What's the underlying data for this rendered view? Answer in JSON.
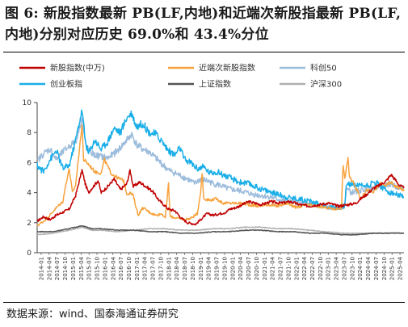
{
  "header": {
    "title": "图 6:  新股指数最新 PB(LF,内地)和近端次新股指最新 PB(LF,内地)分别对应历史 69.0%和 43.4%分位"
  },
  "footer": {
    "source": "数据来源：wind、国泰海通证券研究"
  },
  "chart_data": {
    "type": "line",
    "title": "",
    "xlabel": "",
    "ylabel": "",
    "ylim": [
      0,
      10
    ],
    "yticks": [
      0,
      2,
      4,
      6,
      8,
      10
    ],
    "legend_position": "top",
    "x_tick_labels": [
      "2014-01",
      "2014-04",
      "2014-07",
      "2014-10",
      "2015-01",
      "2015-04",
      "2015-07",
      "2015-10",
      "2016-01",
      "2016-04",
      "2016-07",
      "2016-10",
      "2017-01",
      "2017-04",
      "2017-07",
      "2017-10",
      "2018-01",
      "2018-04",
      "2018-07",
      "2018-10",
      "2019-01",
      "2019-04",
      "2019-07",
      "2019-10",
      "2020-01",
      "2020-04",
      "2020-07",
      "2020-10",
      "2021-01",
      "2021-04",
      "2021-07",
      "2021-10",
      "2022-01",
      "2022-04",
      "2022-07",
      "2022-10",
      "2023-01",
      "2023-04",
      "2023-07",
      "2023-10",
      "2024-01",
      "2024-04",
      "2024-07",
      "2024-10",
      "2025-01",
      "2025-04"
    ],
    "x_start": 2014.0,
    "x_end": 2025.45,
    "series": [
      {
        "name": "新股指数(中万)",
        "color": "#c00000",
        "points": [
          [
            2014.0,
            2.1
          ],
          [
            2014.2,
            2.4
          ],
          [
            2014.4,
            2.2
          ],
          [
            2014.6,
            2.5
          ],
          [
            2014.8,
            2.7
          ],
          [
            2015.0,
            2.9
          ],
          [
            2015.2,
            3.8
          ],
          [
            2015.4,
            5.5
          ],
          [
            2015.5,
            4.6
          ],
          [
            2015.6,
            4.0
          ],
          [
            2015.75,
            4.4
          ],
          [
            2015.9,
            4.8
          ],
          [
            2016.0,
            4.0
          ],
          [
            2016.2,
            4.4
          ],
          [
            2016.4,
            4.9
          ],
          [
            2016.6,
            4.2
          ],
          [
            2016.8,
            4.6
          ],
          [
            2016.9,
            5.5
          ],
          [
            2017.0,
            4.4
          ],
          [
            2017.2,
            4.7
          ],
          [
            2017.4,
            4.4
          ],
          [
            2017.6,
            4.1
          ],
          [
            2017.8,
            3.5
          ],
          [
            2017.95,
            3.2
          ],
          [
            2018.1,
            2.9
          ],
          [
            2018.3,
            2.8
          ],
          [
            2018.5,
            2.3
          ],
          [
            2018.7,
            2.0
          ],
          [
            2018.95,
            1.9
          ],
          [
            2019.1,
            2.2
          ],
          [
            2019.3,
            2.6
          ],
          [
            2019.5,
            2.5
          ],
          [
            2019.7,
            2.6
          ],
          [
            2019.9,
            2.7
          ],
          [
            2020.0,
            2.9
          ],
          [
            2020.2,
            3.0
          ],
          [
            2020.4,
            3.2
          ],
          [
            2020.6,
            3.4
          ],
          [
            2020.8,
            3.3
          ],
          [
            2021.0,
            3.2
          ],
          [
            2021.3,
            3.4
          ],
          [
            2021.6,
            3.3
          ],
          [
            2021.9,
            3.4
          ],
          [
            2022.2,
            3.2
          ],
          [
            2022.5,
            3.1
          ],
          [
            2022.8,
            3.2
          ],
          [
            2023.1,
            3.3
          ],
          [
            2023.4,
            3.1
          ],
          [
            2023.7,
            3.2
          ],
          [
            2023.95,
            3.3
          ],
          [
            2024.1,
            3.6
          ],
          [
            2024.3,
            3.9
          ],
          [
            2024.5,
            4.3
          ],
          [
            2024.7,
            4.5
          ],
          [
            2024.9,
            4.8
          ],
          [
            2025.05,
            5.2
          ],
          [
            2025.2,
            4.8
          ],
          [
            2025.3,
            4.5
          ],
          [
            2025.45,
            4.3
          ]
        ]
      },
      {
        "name": "近端次新股指数",
        "color": "#f7a23c",
        "points": [
          [
            2014.0,
            1.8
          ],
          [
            2014.2,
            2.1
          ],
          [
            2014.4,
            2.5
          ],
          [
            2014.6,
            3.0
          ],
          [
            2014.8,
            3.4
          ],
          [
            2014.9,
            4.6
          ],
          [
            2015.0,
            5.6
          ],
          [
            2015.1,
            4.0
          ],
          [
            2015.2,
            4.5
          ],
          [
            2015.4,
            8.5
          ],
          [
            2015.45,
            6.2
          ],
          [
            2015.6,
            5.9
          ],
          [
            2015.8,
            5.4
          ],
          [
            2016.0,
            5.3
          ],
          [
            2016.1,
            6.2
          ],
          [
            2016.3,
            5.3
          ],
          [
            2016.5,
            5.0
          ],
          [
            2016.7,
            4.8
          ],
          [
            2016.8,
            3.9
          ],
          [
            2016.9,
            4.0
          ],
          [
            2017.0,
            3.8
          ],
          [
            2017.15,
            2.5
          ],
          [
            2017.3,
            3.0
          ],
          [
            2017.5,
            2.7
          ],
          [
            2017.7,
            2.5
          ],
          [
            2017.9,
            2.6
          ],
          [
            2018.0,
            2.3
          ],
          [
            2018.1,
            4.6
          ],
          [
            2018.15,
            2.4
          ],
          [
            2018.4,
            2.3
          ],
          [
            2018.6,
            2.2
          ],
          [
            2018.8,
            2.3
          ],
          [
            2019.0,
            2.6
          ],
          [
            2019.1,
            4.0
          ],
          [
            2019.15,
            5.3
          ],
          [
            2019.2,
            3.6
          ],
          [
            2019.4,
            3.5
          ],
          [
            2019.6,
            3.6
          ],
          [
            2019.8,
            3.3
          ],
          [
            2020.0,
            3.3
          ],
          [
            2020.3,
            3.3
          ],
          [
            2020.6,
            3.2
          ],
          [
            2020.9,
            3.1
          ],
          [
            2021.2,
            3.2
          ],
          [
            2021.5,
            3.1
          ],
          [
            2021.8,
            3.3
          ],
          [
            2022.1,
            3.0
          ],
          [
            2022.4,
            3.2
          ],
          [
            2022.7,
            3.1
          ],
          [
            2023.0,
            3.0
          ],
          [
            2023.3,
            2.9
          ],
          [
            2023.5,
            3.0
          ],
          [
            2023.55,
            5.9
          ],
          [
            2023.6,
            4.9
          ],
          [
            2023.7,
            6.3
          ],
          [
            2023.75,
            5.0
          ],
          [
            2023.9,
            4.6
          ],
          [
            2024.1,
            3.6
          ],
          [
            2024.3,
            4.2
          ],
          [
            2024.5,
            4.0
          ],
          [
            2024.7,
            4.6
          ],
          [
            2024.9,
            4.5
          ],
          [
            2025.05,
            4.7
          ],
          [
            2025.2,
            4.4
          ],
          [
            2025.35,
            4.3
          ],
          [
            2025.45,
            4.1
          ]
        ]
      },
      {
        "name": "科创50",
        "color": "#9cbcdc",
        "points": [
          [
            2014.0,
            6.1
          ],
          [
            2014.2,
            6.6
          ],
          [
            2014.4,
            6.9
          ],
          [
            2014.6,
            6.2
          ],
          [
            2014.8,
            6.7
          ],
          [
            2015.0,
            7.1
          ],
          [
            2015.2,
            7.4
          ],
          [
            2015.4,
            9.0
          ],
          [
            2015.5,
            7.3
          ],
          [
            2015.6,
            6.8
          ],
          [
            2015.8,
            6.5
          ],
          [
            2016.0,
            6.4
          ],
          [
            2016.2,
            6.3
          ],
          [
            2016.4,
            6.6
          ],
          [
            2016.6,
            7.0
          ],
          [
            2016.8,
            7.5
          ],
          [
            2016.95,
            7.9
          ],
          [
            2017.1,
            7.2
          ],
          [
            2017.3,
            6.9
          ],
          [
            2017.5,
            6.7
          ],
          [
            2017.7,
            6.3
          ],
          [
            2017.9,
            5.9
          ],
          [
            2018.1,
            5.5
          ],
          [
            2018.3,
            5.3
          ],
          [
            2018.5,
            5.1
          ],
          [
            2018.7,
            4.9
          ],
          [
            2018.9,
            4.6
          ],
          [
            2019.1,
            4.9
          ],
          [
            2019.3,
            4.8
          ],
          [
            2019.5,
            4.6
          ],
          [
            2019.7,
            4.5
          ],
          [
            2019.9,
            4.3
          ],
          [
            2020.1,
            4.2
          ],
          [
            2020.4,
            4.1
          ],
          [
            2020.7,
            3.9
          ],
          [
            2021.0,
            3.8
          ],
          [
            2021.3,
            3.7
          ],
          [
            2021.6,
            3.5
          ],
          [
            2021.9,
            3.4
          ],
          [
            2022.2,
            3.3
          ],
          [
            2022.5,
            3.2
          ],
          [
            2022.8,
            3.1
          ],
          [
            2023.1,
            3.0
          ],
          [
            2023.4,
            3.0
          ],
          [
            2023.6,
            3.1
          ],
          [
            2023.65,
            4.3
          ],
          [
            2023.8,
            4.0
          ],
          [
            2024.0,
            4.1
          ],
          [
            2024.2,
            4.2
          ],
          [
            2024.4,
            4.3
          ],
          [
            2024.6,
            4.4
          ],
          [
            2024.8,
            4.4
          ],
          [
            2025.0,
            4.6
          ],
          [
            2025.2,
            4.4
          ],
          [
            2025.45,
            4.3
          ]
        ]
      },
      {
        "name": "创业板指",
        "color": "#1aaee8",
        "points": [
          [
            2014.0,
            5.8
          ],
          [
            2014.2,
            5.4
          ],
          [
            2014.4,
            6.2
          ],
          [
            2014.6,
            6.8
          ],
          [
            2014.8,
            5.6
          ],
          [
            2015.0,
            5.8
          ],
          [
            2015.2,
            7.5
          ],
          [
            2015.4,
            9.5
          ],
          [
            2015.5,
            7.5
          ],
          [
            2015.6,
            6.6
          ],
          [
            2015.8,
            7.5
          ],
          [
            2016.0,
            6.9
          ],
          [
            2016.2,
            7.4
          ],
          [
            2016.4,
            8.3
          ],
          [
            2016.6,
            8.0
          ],
          [
            2016.8,
            9.0
          ],
          [
            2016.95,
            9.3
          ],
          [
            2017.1,
            8.4
          ],
          [
            2017.3,
            8.6
          ],
          [
            2017.5,
            8.0
          ],
          [
            2017.7,
            7.9
          ],
          [
            2017.9,
            7.4
          ],
          [
            2018.1,
            6.8
          ],
          [
            2018.3,
            6.5
          ],
          [
            2018.45,
            7.0
          ],
          [
            2018.6,
            6.2
          ],
          [
            2018.8,
            6.0
          ],
          [
            2019.0,
            5.6
          ],
          [
            2019.2,
            5.7
          ],
          [
            2019.4,
            5.3
          ],
          [
            2019.6,
            5.4
          ],
          [
            2019.8,
            5.2
          ],
          [
            2020.0,
            5.0
          ],
          [
            2020.3,
            4.7
          ],
          [
            2020.6,
            4.6
          ],
          [
            2020.9,
            4.3
          ],
          [
            2021.2,
            4.1
          ],
          [
            2021.5,
            3.9
          ],
          [
            2021.8,
            3.7
          ],
          [
            2022.1,
            3.6
          ],
          [
            2022.4,
            3.5
          ],
          [
            2022.7,
            3.3
          ],
          [
            2023.0,
            3.1
          ],
          [
            2023.3,
            3.0
          ],
          [
            2023.6,
            3.1
          ],
          [
            2023.65,
            4.5
          ],
          [
            2023.8,
            4.6
          ],
          [
            2024.0,
            4.5
          ],
          [
            2024.3,
            4.5
          ],
          [
            2024.6,
            4.7
          ],
          [
            2024.8,
            4.3
          ],
          [
            2025.0,
            4.0
          ],
          [
            2025.2,
            3.9
          ],
          [
            2025.45,
            3.7
          ]
        ]
      },
      {
        "name": "上证指数",
        "color": "#555555",
        "points": [
          [
            2014.0,
            1.4
          ],
          [
            2014.5,
            1.4
          ],
          [
            2015.0,
            1.6
          ],
          [
            2015.4,
            1.8
          ],
          [
            2015.7,
            1.6
          ],
          [
            2016.0,
            1.6
          ],
          [
            2016.5,
            1.5
          ],
          [
            2017.0,
            1.5
          ],
          [
            2017.5,
            1.4
          ],
          [
            2018.0,
            1.4
          ],
          [
            2018.5,
            1.3
          ],
          [
            2019.0,
            1.3
          ],
          [
            2019.5,
            1.4
          ],
          [
            2020.0,
            1.4
          ],
          [
            2020.5,
            1.5
          ],
          [
            2021.0,
            1.5
          ],
          [
            2021.5,
            1.4
          ],
          [
            2022.0,
            1.4
          ],
          [
            2022.5,
            1.3
          ],
          [
            2023.0,
            1.3
          ],
          [
            2023.5,
            1.2
          ],
          [
            2024.0,
            1.2
          ],
          [
            2024.5,
            1.3
          ],
          [
            2025.0,
            1.3
          ],
          [
            2025.45,
            1.3
          ]
        ]
      },
      {
        "name": "沪深300",
        "color": "#b0b0b0",
        "points": [
          [
            2014.0,
            1.2
          ],
          [
            2014.5,
            1.3
          ],
          [
            2015.0,
            1.5
          ],
          [
            2015.4,
            1.7
          ],
          [
            2015.7,
            1.5
          ],
          [
            2016.0,
            1.5
          ],
          [
            2016.5,
            1.4
          ],
          [
            2017.0,
            1.5
          ],
          [
            2017.5,
            1.6
          ],
          [
            2018.0,
            1.6
          ],
          [
            2018.5,
            1.5
          ],
          [
            2019.0,
            1.5
          ],
          [
            2019.5,
            1.6
          ],
          [
            2020.0,
            1.6
          ],
          [
            2020.5,
            1.7
          ],
          [
            2021.0,
            1.7
          ],
          [
            2021.5,
            1.6
          ],
          [
            2022.0,
            1.6
          ],
          [
            2022.5,
            1.5
          ],
          [
            2023.0,
            1.4
          ],
          [
            2023.5,
            1.3
          ],
          [
            2024.0,
            1.3
          ],
          [
            2024.5,
            1.3
          ],
          [
            2025.0,
            1.3
          ],
          [
            2025.45,
            1.3
          ]
        ]
      }
    ]
  }
}
